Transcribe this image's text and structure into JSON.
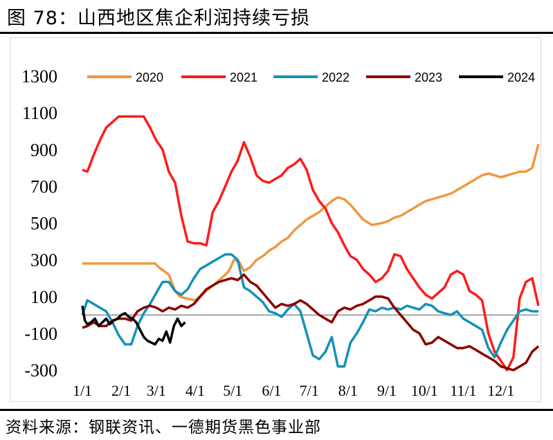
{
  "header": {
    "title": "图 78：山西地区焦企利润持续亏损"
  },
  "footer": {
    "source": "资料来源：钢联资讯、一德期货黑色事业部"
  },
  "chart_data": {
    "type": "line",
    "title": "",
    "xlabel": "",
    "ylabel": "",
    "ylim": [
      -300,
      1300
    ],
    "yticks": [
      "1300",
      "1100",
      "900",
      "700",
      "500",
      "300",
      "100",
      "-100",
      "-300"
    ],
    "xticks": [
      "1/1",
      "2/1",
      "3/1",
      "4/1",
      "5/1",
      "6/1",
      "7/1",
      "8/1",
      "9/1",
      "10/1",
      "11/1",
      "12/1"
    ],
    "legend_position": "top",
    "x_unit": "day of year",
    "series": [
      {
        "name": "2020",
        "color": "#f0973f",
        "x": [
          1,
          10,
          20,
          31,
          45,
          59,
          62,
          66,
          70,
          75,
          79,
          84,
          91,
          98,
          105,
          112,
          118,
          122,
          126,
          130,
          135,
          140,
          145,
          150,
          155,
          160,
          165,
          170,
          175,
          180,
          185,
          190,
          195,
          200,
          205,
          210,
          215,
          220,
          225,
          232,
          240,
          245,
          250,
          255,
          260,
          265,
          270,
          275,
          280,
          285,
          290,
          295,
          300,
          305,
          310,
          315,
          320,
          325,
          330,
          335,
          340,
          345,
          350,
          355,
          360,
          365
        ],
        "y": [
          280,
          280,
          280,
          280,
          280,
          280,
          260,
          240,
          220,
          130,
          100,
          90,
          80,
          120,
          160,
          200,
          240,
          300,
          290,
          240,
          260,
          300,
          320,
          350,
          370,
          400,
          420,
          460,
          490,
          520,
          540,
          560,
          590,
          620,
          640,
          630,
          600,
          560,
          520,
          490,
          500,
          510,
          530,
          540,
          560,
          580,
          600,
          620,
          630,
          640,
          650,
          660,
          680,
          700,
          720,
          740,
          760,
          770,
          760,
          750,
          760,
          770,
          780,
          780,
          800,
          930
        ]
      },
      {
        "name": "2021",
        "color": "#ff1a1a",
        "x": [
          1,
          5,
          10,
          15,
          20,
          25,
          30,
          35,
          40,
          45,
          50,
          55,
          60,
          65,
          70,
          75,
          80,
          85,
          90,
          95,
          100,
          105,
          110,
          115,
          120,
          125,
          130,
          135,
          140,
          145,
          150,
          155,
          160,
          165,
          170,
          175,
          180,
          185,
          190,
          195,
          200,
          205,
          210,
          215,
          220,
          225,
          230,
          235,
          240,
          245,
          250,
          255,
          260,
          265,
          270,
          275,
          280,
          285,
          290,
          295,
          300,
          305,
          310,
          315,
          320,
          325,
          330,
          335,
          340,
          345,
          350,
          355,
          360,
          365
        ],
        "y": [
          790,
          780,
          870,
          950,
          1020,
          1050,
          1080,
          1080,
          1080,
          1080,
          1080,
          1020,
          950,
          900,
          780,
          720,
          540,
          400,
          390,
          390,
          380,
          560,
          620,
          700,
          780,
          840,
          940,
          860,
          760,
          730,
          720,
          740,
          760,
          800,
          820,
          850,
          790,
          680,
          620,
          580,
          500,
          450,
          380,
          320,
          300,
          250,
          220,
          180,
          200,
          240,
          330,
          320,
          250,
          200,
          150,
          110,
          90,
          120,
          150,
          220,
          240,
          220,
          130,
          110,
          80,
          -100,
          -200,
          -250,
          -300,
          -230,
          90,
          180,
          200,
          50
        ]
      },
      {
        "name": "2022",
        "color": "#1591b8",
        "x": [
          1,
          5,
          10,
          15,
          20,
          25,
          30,
          35,
          40,
          45,
          50,
          55,
          60,
          65,
          70,
          75,
          80,
          85,
          90,
          95,
          100,
          105,
          110,
          115,
          120,
          125,
          130,
          135,
          140,
          145,
          150,
          155,
          160,
          165,
          170,
          175,
          180,
          185,
          190,
          195,
          200,
          205,
          210,
          215,
          220,
          225,
          230,
          235,
          240,
          245,
          250,
          255,
          260,
          265,
          270,
          275,
          280,
          285,
          290,
          295,
          300,
          305,
          310,
          315,
          320,
          325,
          330,
          335,
          340,
          345,
          350,
          355,
          360,
          365
        ],
        "y": [
          0,
          80,
          60,
          40,
          20,
          -40,
          -110,
          -160,
          -160,
          -60,
          10,
          60,
          120,
          180,
          180,
          130,
          110,
          140,
          200,
          250,
          270,
          290,
          310,
          330,
          330,
          300,
          150,
          130,
          100,
          70,
          20,
          10,
          -10,
          30,
          60,
          20,
          -100,
          -220,
          -240,
          -200,
          -120,
          -280,
          -280,
          -150,
          -100,
          -40,
          30,
          20,
          40,
          30,
          40,
          30,
          50,
          40,
          30,
          60,
          50,
          20,
          10,
          0,
          20,
          -20,
          -40,
          -60,
          -80,
          -180,
          -230,
          -150,
          -80,
          -30,
          20,
          30,
          20,
          20
        ]
      },
      {
        "name": "2023",
        "color": "#8b0000",
        "x": [
          1,
          5,
          10,
          15,
          20,
          25,
          30,
          35,
          40,
          45,
          50,
          55,
          60,
          65,
          70,
          75,
          80,
          85,
          90,
          95,
          100,
          105,
          110,
          115,
          120,
          125,
          130,
          135,
          140,
          145,
          150,
          155,
          160,
          165,
          170,
          175,
          180,
          185,
          190,
          195,
          200,
          205,
          210,
          215,
          220,
          225,
          230,
          235,
          240,
          245,
          250,
          255,
          260,
          265,
          270,
          275,
          280,
          285,
          290,
          295,
          300,
          305,
          310,
          315,
          320,
          325,
          330,
          335,
          340,
          345,
          350,
          355,
          360,
          365
        ],
        "y": [
          -70,
          -60,
          -40,
          -60,
          -60,
          -30,
          -20,
          -20,
          -30,
          20,
          40,
          50,
          40,
          20,
          40,
          30,
          50,
          40,
          60,
          100,
          140,
          160,
          180,
          190,
          200,
          190,
          220,
          180,
          160,
          120,
          80,
          40,
          60,
          50,
          60,
          80,
          60,
          30,
          0,
          -20,
          -40,
          20,
          40,
          30,
          50,
          60,
          80,
          100,
          100,
          90,
          40,
          0,
          -40,
          -80,
          -100,
          -160,
          -150,
          -120,
          -140,
          -160,
          -180,
          -180,
          -170,
          -190,
          -210,
          -230,
          -250,
          -280,
          -290,
          -300,
          -280,
          -260,
          -200,
          -170
        ]
      },
      {
        "name": "2024",
        "color": "#000000",
        "x": [
          1,
          3,
          5,
          8,
          11,
          14,
          17,
          20,
          23,
          26,
          29,
          32,
          35,
          38,
          41,
          44,
          47,
          50,
          53,
          56,
          59,
          62,
          65,
          68,
          71,
          74,
          77,
          80,
          83
        ],
        "y": [
          50,
          -30,
          -50,
          -40,
          -20,
          -60,
          -40,
          -20,
          -50,
          -30,
          -20,
          0,
          10,
          -10,
          -20,
          -40,
          -80,
          -120,
          -140,
          -150,
          -160,
          -130,
          -140,
          -90,
          -150,
          -60,
          -20,
          -60,
          -40
        ]
      }
    ]
  }
}
